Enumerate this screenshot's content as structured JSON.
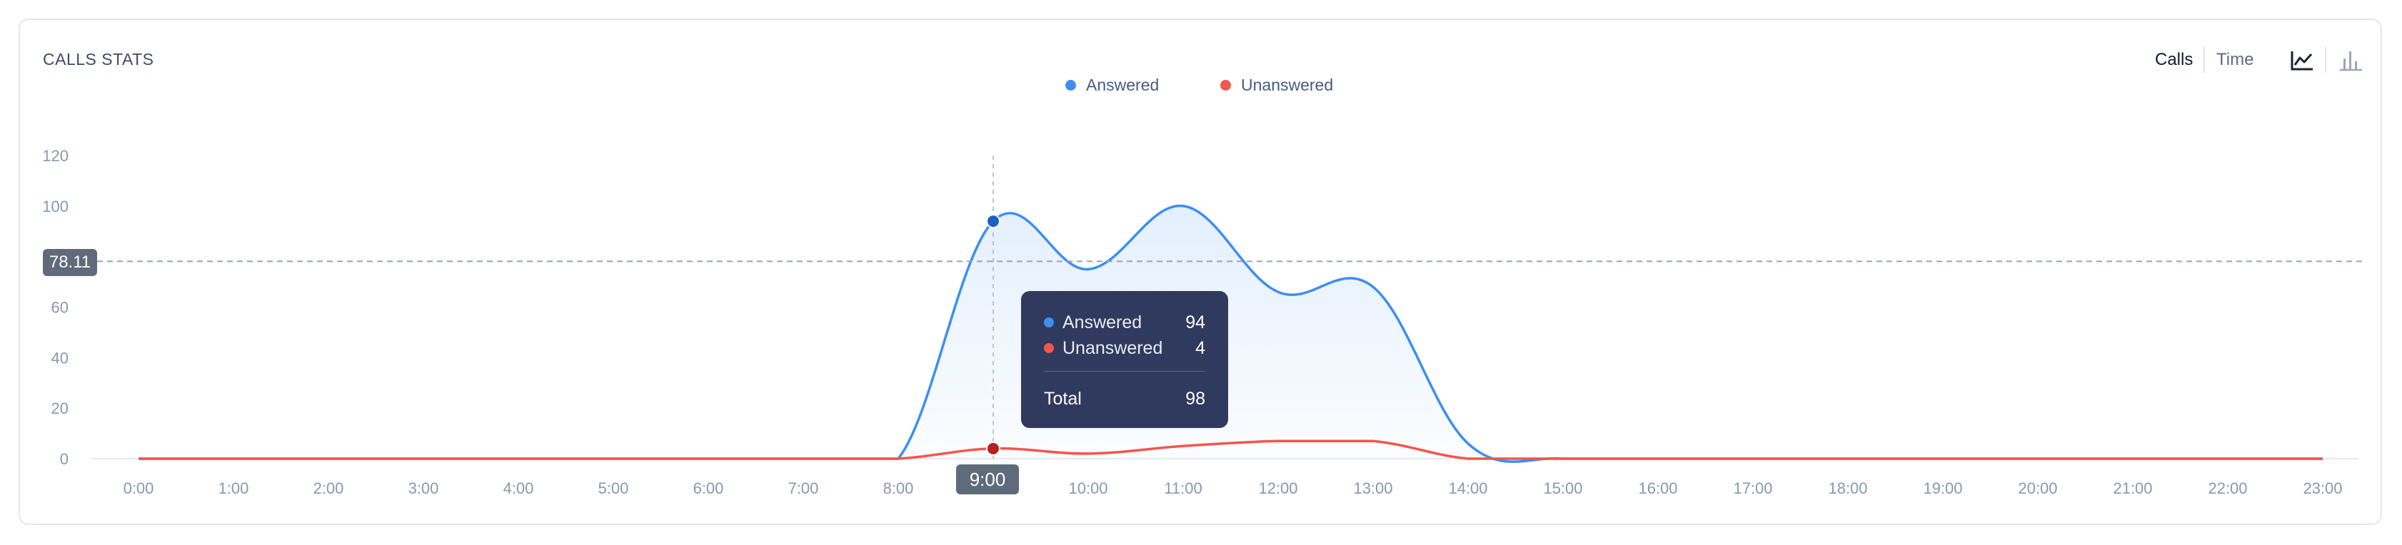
{
  "card": {
    "title": "CALLS STATS"
  },
  "controls": {
    "calls_label": "Calls",
    "time_label": "Time",
    "active": "Calls",
    "icons": [
      "line-chart-icon",
      "bar-chart-icon"
    ]
  },
  "colors": {
    "answered": "#3d8ef3",
    "unanswered": "#f2564d",
    "tooltip_bg": "#2f3a5e",
    "badge_bg": "#5f6b7a"
  },
  "crosshair": {
    "y_value": "78.11",
    "x_value": "9:00"
  },
  "tooltip": {
    "answered_label": "Answered",
    "answered_value": "94",
    "unanswered_label": "Unanswered",
    "unanswered_value": "4",
    "total_label": "Total",
    "total_value": "98"
  },
  "chart_data": {
    "type": "area",
    "title": "CALLS STATS",
    "xlabel": "",
    "ylabel": "",
    "x": [
      "0:00",
      "1:00",
      "2:00",
      "3:00",
      "4:00",
      "5:00",
      "6:00",
      "7:00",
      "8:00",
      "9:00",
      "10:00",
      "11:00",
      "12:00",
      "13:00",
      "14:00",
      "15:00",
      "16:00",
      "17:00",
      "18:00",
      "19:00",
      "20:00",
      "21:00",
      "22:00",
      "23:00"
    ],
    "series": [
      {
        "name": "Answered",
        "values": [
          0,
          0,
          0,
          0,
          0,
          0,
          0,
          0,
          0,
          94,
          75,
          100,
          66,
          68,
          6,
          0,
          0,
          0,
          0,
          0,
          0,
          0,
          0,
          0
        ]
      },
      {
        "name": "Unanswered",
        "values": [
          0,
          0,
          0,
          0,
          0,
          0,
          0,
          0,
          0,
          4,
          2,
          5,
          7,
          7,
          0,
          0,
          0,
          0,
          0,
          0,
          0,
          0,
          0,
          0
        ]
      }
    ],
    "yticks": [
      0,
      20,
      40,
      60,
      80,
      100,
      120
    ],
    "ylim": [
      0,
      120
    ],
    "grid": "horizontal",
    "legend": "top-center"
  }
}
